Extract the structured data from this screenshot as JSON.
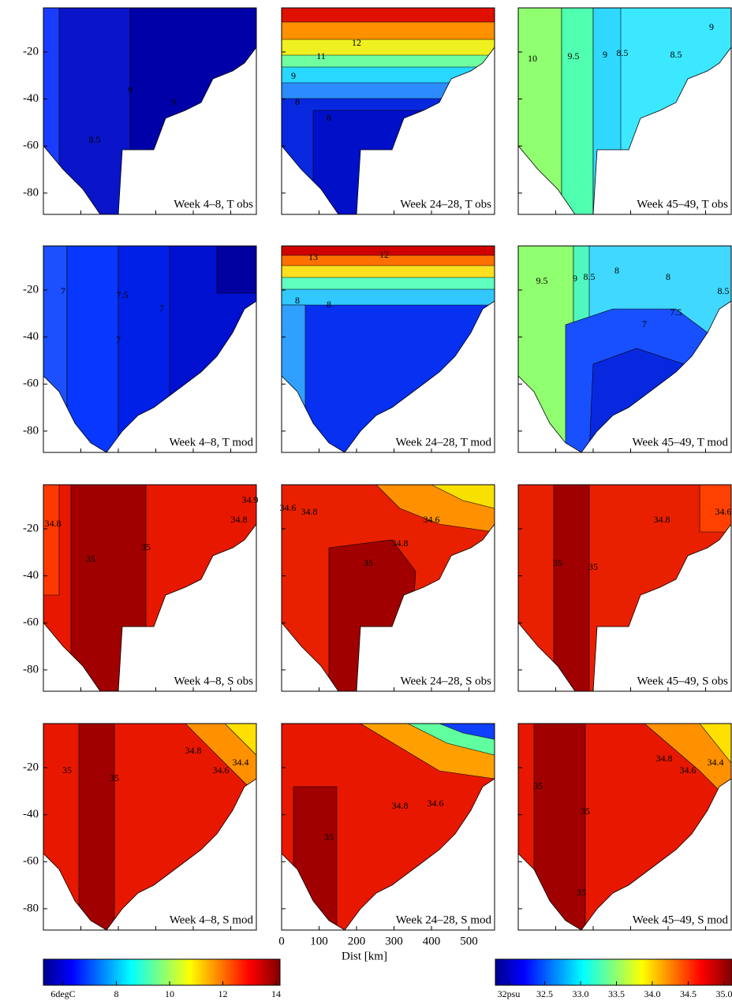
{
  "panels": [
    {
      "label": "Week 4–8, T obs",
      "contour_labels": [
        "9",
        "9",
        "8.5"
      ]
    },
    {
      "label": "Week 24–28, T obs",
      "contour_labels": [
        "12",
        "11",
        "9",
        "8",
        "8"
      ]
    },
    {
      "label": "Week 45–49, T obs",
      "contour_labels": [
        "10",
        "9.5",
        "9",
        "8.5",
        "8.5",
        "9"
      ]
    },
    {
      "label": "Week 4–8, T mod",
      "contour_labels": [
        "7",
        "7",
        "7.5",
        "7"
      ]
    },
    {
      "label": "Week 24–28, T mod",
      "contour_labels": [
        "13",
        "12",
        "8",
        "8"
      ]
    },
    {
      "label": "Week 45–49, T mod",
      "contour_labels": [
        "9.5",
        "9",
        "8.5",
        "8",
        "8",
        "8.5",
        "7.5",
        "7"
      ]
    },
    {
      "label": "Week 4–8, S obs",
      "contour_labels": [
        "34.8",
        "35",
        "35",
        "34.8",
        "34.9"
      ]
    },
    {
      "label": "Week 24–28, S obs",
      "contour_labels": [
        "34.6",
        "34.8",
        "34.8",
        "35",
        "34.6"
      ]
    },
    {
      "label": "Week 45–49, S obs",
      "contour_labels": [
        "35",
        "35",
        "34.8",
        "34.6"
      ]
    },
    {
      "label": "Week 4–8, S mod",
      "contour_labels": [
        "35",
        "35",
        "34.8",
        "34.6",
        "34.4"
      ]
    },
    {
      "label": "Week 24–28, S mod",
      "contour_labels": [
        "34.8",
        "34.6",
        "35"
      ]
    },
    {
      "label": "Week 45–49, S mod",
      "contour_labels": [
        "35",
        "35",
        "35",
        "34.8",
        "34.6",
        "34.4"
      ]
    }
  ],
  "y_ticks": [
    -20,
    -40,
    -60,
    -80
  ],
  "x_ticks": [
    0,
    100,
    200,
    300,
    400,
    500
  ],
  "x_label": "Dist [km]",
  "colorbars": [
    {
      "ticks": [
        {
          "value": 6,
          "label": "6degC"
        },
        8,
        10,
        12,
        14
      ]
    },
    {
      "ticks": [
        {
          "value": 32,
          "label": "32psu"
        },
        32.5,
        {
          "value": 33,
          "label": "33.0"
        },
        33.5,
        {
          "value": 34,
          "label": "34.0"
        },
        34.5,
        {
          "value": 35,
          "label": "35.0"
        }
      ]
    }
  ]
}
